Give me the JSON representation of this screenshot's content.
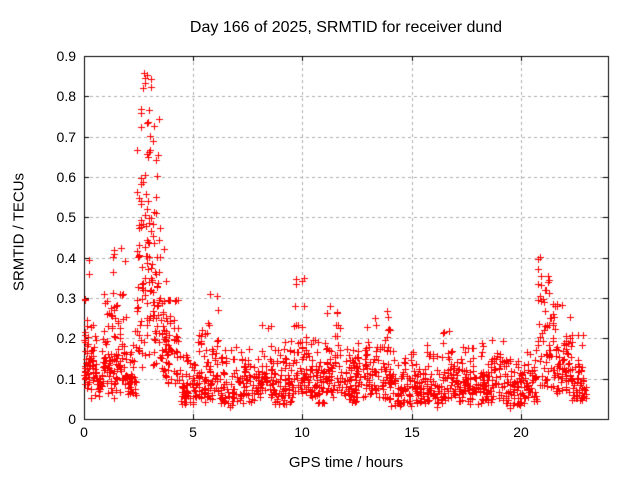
{
  "chart_data": {
    "type": "scatter",
    "title": "Day 166 of 2025, SRMTID for receiver dund",
    "xlabel": "GPS time / hours",
    "ylabel": "SRMTID / TECUs",
    "xlim": [
      0,
      24
    ],
    "ylim": [
      0,
      0.9
    ],
    "xticks": {
      "values": [
        0,
        5,
        10,
        15,
        20
      ],
      "labels": [
        "0",
        "5",
        "10",
        "15",
        "20"
      ]
    },
    "yticks": {
      "values": [
        0,
        0.1,
        0.2,
        0.3,
        0.4,
        0.5,
        0.6,
        0.7,
        0.8,
        0.9
      ],
      "labels": [
        "0",
        "0.1",
        "0.2",
        "0.3",
        "0.4",
        "0.5",
        "0.6",
        "0.7",
        "0.8",
        "0.9"
      ]
    },
    "grid": "dashed-at-every-tick",
    "legend": "none",
    "marker": "plus",
    "marker_size_px": 7,
    "colors": {
      "points": "#ff0000",
      "grid": "#b0b0b0",
      "axis": "#000000",
      "text": "#000000",
      "background": "#ffffff"
    },
    "seed": 20250166,
    "bin_format": [
      "x_start_hours",
      "x_end_hours",
      "n_points",
      "y_median",
      "y_log_spread",
      "y_min",
      "y_max"
    ],
    "point_bins": [
      [
        0.0,
        0.25,
        40,
        0.18,
        0.45,
        0.07,
        0.42
      ],
      [
        0.25,
        0.9,
        55,
        0.12,
        0.4,
        0.045,
        0.24
      ],
      [
        0.9,
        1.25,
        35,
        0.15,
        0.45,
        0.06,
        0.31
      ],
      [
        1.25,
        1.95,
        70,
        0.18,
        0.5,
        0.05,
        0.43
      ],
      [
        1.95,
        2.4,
        35,
        0.1,
        0.45,
        0.04,
        0.26
      ],
      [
        2.4,
        2.75,
        45,
        0.35,
        0.55,
        0.12,
        0.88
      ],
      [
        2.75,
        3.1,
        50,
        0.42,
        0.5,
        0.15,
        0.87
      ],
      [
        3.1,
        3.45,
        45,
        0.32,
        0.5,
        0.12,
        0.75
      ],
      [
        3.45,
        3.8,
        40,
        0.22,
        0.45,
        0.1,
        0.48
      ],
      [
        3.8,
        4.35,
        45,
        0.16,
        0.4,
        0.08,
        0.3
      ],
      [
        4.35,
        5.15,
        55,
        0.075,
        0.4,
        0.03,
        0.16
      ],
      [
        5.15,
        5.65,
        40,
        0.1,
        0.45,
        0.04,
        0.22
      ],
      [
        5.65,
        6.2,
        45,
        0.13,
        0.5,
        0.05,
        0.33
      ],
      [
        6.2,
        7.3,
        75,
        0.08,
        0.45,
        0.03,
        0.18
      ],
      [
        7.3,
        8.1,
        55,
        0.09,
        0.4,
        0.04,
        0.18
      ],
      [
        8.1,
        8.7,
        45,
        0.11,
        0.4,
        0.05,
        0.24
      ],
      [
        8.7,
        9.6,
        70,
        0.09,
        0.45,
        0.035,
        0.2
      ],
      [
        9.6,
        10.2,
        55,
        0.13,
        0.5,
        0.05,
        0.36
      ],
      [
        10.2,
        11.0,
        65,
        0.09,
        0.45,
        0.03,
        0.2
      ],
      [
        11.0,
        11.7,
        55,
        0.12,
        0.45,
        0.05,
        0.28
      ],
      [
        11.7,
        12.8,
        85,
        0.1,
        0.4,
        0.04,
        0.23
      ],
      [
        12.8,
        14.0,
        90,
        0.12,
        0.45,
        0.05,
        0.27
      ],
      [
        14.0,
        15.2,
        85,
        0.08,
        0.4,
        0.03,
        0.17
      ],
      [
        15.2,
        16.3,
        80,
        0.075,
        0.4,
        0.03,
        0.19
      ],
      [
        16.3,
        17.1,
        60,
        0.09,
        0.45,
        0.04,
        0.22
      ],
      [
        17.1,
        18.2,
        80,
        0.085,
        0.4,
        0.035,
        0.18
      ],
      [
        18.2,
        19.2,
        75,
        0.09,
        0.4,
        0.04,
        0.2
      ],
      [
        19.2,
        20.0,
        60,
        0.07,
        0.45,
        0.025,
        0.15
      ],
      [
        20.0,
        20.75,
        55,
        0.09,
        0.4,
        0.04,
        0.18
      ],
      [
        20.75,
        21.1,
        25,
        0.22,
        0.55,
        0.08,
        0.41
      ],
      [
        21.1,
        21.6,
        45,
        0.2,
        0.5,
        0.08,
        0.37
      ],
      [
        21.6,
        22.3,
        60,
        0.13,
        0.45,
        0.06,
        0.3
      ],
      [
        22.3,
        23.0,
        60,
        0.09,
        0.4,
        0.045,
        0.22
      ]
    ]
  }
}
